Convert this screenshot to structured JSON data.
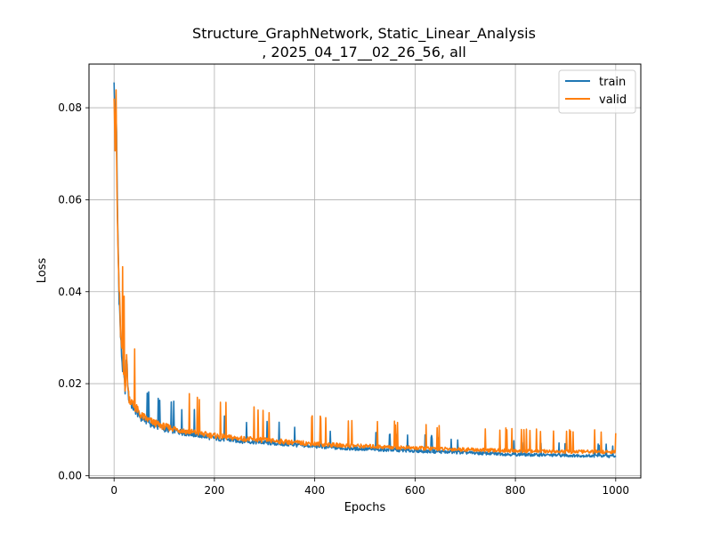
{
  "chart_data": {
    "type": "line",
    "title_line1": "Structure_GraphNetwork, Static_Linear_Analysis",
    "title_line2": ", 2025_04_17__02_26_56, all",
    "xlabel": "Epochs",
    "ylabel": "Loss",
    "xlim": [
      -50,
      1050
    ],
    "ylim": [
      -0.0005,
      0.0895
    ],
    "xticks": [
      0,
      200,
      400,
      600,
      800,
      1000
    ],
    "yticks": [
      0.0,
      0.02,
      0.04,
      0.06,
      0.08
    ],
    "xtick_labels": [
      "0",
      "200",
      "400",
      "600",
      "800",
      "1000"
    ],
    "ytick_labels": [
      "0.00",
      "0.02",
      "0.04",
      "0.06",
      "0.08"
    ],
    "grid": true,
    "legend_position": "top-right",
    "series": [
      {
        "name": "train",
        "color": "#1f77b4",
        "x": [
          0,
          2,
          4,
          6,
          8,
          10,
          12,
          14,
          16,
          18,
          20,
          22,
          25,
          28,
          30,
          35,
          40,
          45,
          50,
          55,
          60,
          65,
          70,
          80,
          90,
          100,
          120,
          140,
          160,
          180,
          200,
          230,
          260,
          300,
          350,
          400,
          450,
          500,
          550,
          600,
          650,
          700,
          750,
          800,
          850,
          900,
          950,
          1000
        ],
        "y": [
          0.0855,
          0.075,
          0.081,
          0.062,
          0.05,
          0.04,
          0.033,
          0.028,
          0.025,
          0.022,
          0.0205,
          0.019,
          0.026,
          0.018,
          0.0165,
          0.0155,
          0.0145,
          0.014,
          0.013,
          0.0125,
          0.0122,
          0.0118,
          0.0115,
          0.011,
          0.0105,
          0.0102,
          0.0098,
          0.0093,
          0.009,
          0.0086,
          0.0082,
          0.0078,
          0.0075,
          0.0072,
          0.0068,
          0.0064,
          0.006,
          0.0058,
          0.0056,
          0.0054,
          0.0052,
          0.005,
          0.0048,
          0.0046,
          0.0045,
          0.0044,
          0.0043,
          0.0042
        ]
      },
      {
        "name": "valid",
        "color": "#ff7f0e",
        "x": [
          0,
          2,
          4,
          6,
          8,
          10,
          12,
          14,
          16,
          18,
          20,
          22,
          25,
          28,
          30,
          35,
          40,
          45,
          50,
          55,
          60,
          65,
          70,
          80,
          90,
          100,
          120,
          140,
          160,
          180,
          200,
          230,
          260,
          300,
          350,
          400,
          450,
          500,
          550,
          600,
          650,
          700,
          750,
          800,
          850,
          900,
          950,
          1000
        ],
        "y": [
          0.082,
          0.072,
          0.079,
          0.06,
          0.048,
          0.041,
          0.034,
          0.029,
          0.026,
          0.023,
          0.021,
          0.0195,
          0.025,
          0.0185,
          0.017,
          0.016,
          0.015,
          0.0145,
          0.0135,
          0.013,
          0.0127,
          0.0123,
          0.012,
          0.0115,
          0.011,
          0.0107,
          0.0102,
          0.0097,
          0.0094,
          0.009,
          0.0087,
          0.0083,
          0.008,
          0.0077,
          0.0073,
          0.0069,
          0.0066,
          0.0064,
          0.0062,
          0.006,
          0.0058,
          0.0057,
          0.0055,
          0.0054,
          0.0053,
          0.0052,
          0.0052,
          0.0051
        ]
      }
    ]
  }
}
